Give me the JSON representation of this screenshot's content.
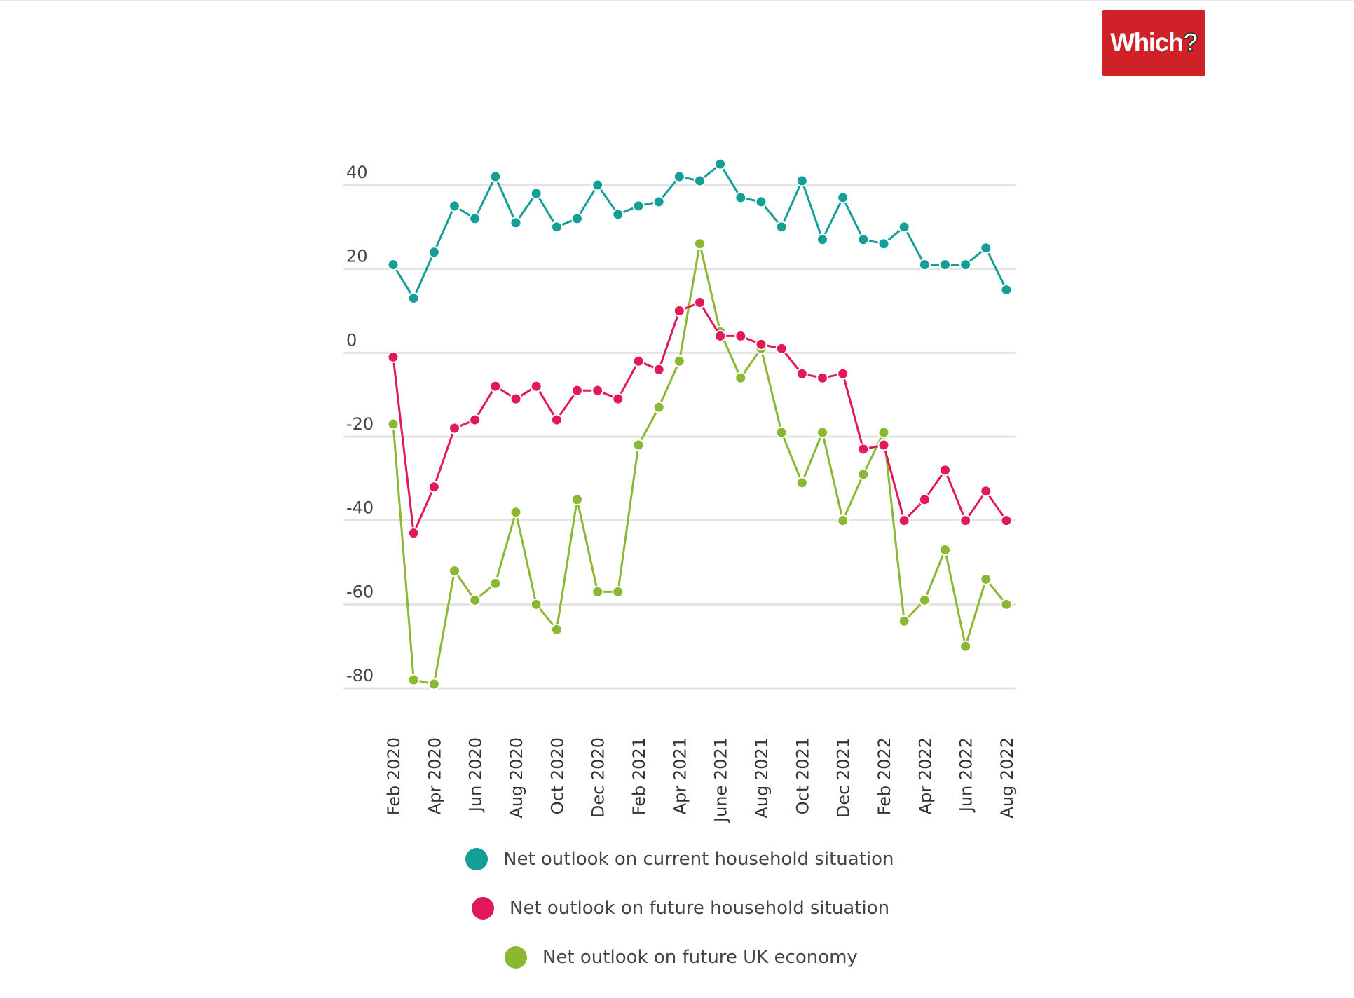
{
  "logo": {
    "text": "Which",
    "mark": "?"
  },
  "chart_data": {
    "type": "line",
    "title": "",
    "xlabel": "",
    "ylabel": "",
    "ylim": [
      -80,
      40
    ],
    "y_ticks": [
      40,
      20,
      0,
      -20,
      -40,
      -60,
      -80
    ],
    "y_tick_labels": [
      "40",
      "20",
      "0",
      "-20",
      "-40",
      "-60",
      "-80"
    ],
    "grid": true,
    "legend_position": "bottom",
    "x": [
      "Feb 2020",
      "Mar 2020",
      "Apr 2020",
      "May 2020",
      "Jun 2020",
      "Jul 2020",
      "Aug 2020",
      "Sep 2020",
      "Oct 2020",
      "Nov 2020",
      "Dec 2020",
      "Jan 2021",
      "Feb 2021",
      "Mar 2021",
      "Apr 2021",
      "May 2021",
      "June 2021",
      "Jul 2021",
      "Aug 2021",
      "Sep 2021",
      "Oct 2021",
      "Nov 2021",
      "Dec 2021",
      "Jan 2022",
      "Feb 2022",
      "Mar 2022",
      "Apr 2022",
      "May 2022",
      "Jun 2022",
      "Jul 2022",
      "Aug 2022"
    ],
    "x_tick_labels": [
      "Feb 2020",
      "Apr 2020",
      "Jun 2020",
      "Aug 2020",
      "Oct 2020",
      "Dec 2020",
      "Feb 2021",
      "Apr 2021",
      "June 2021",
      "Aug 2021",
      "Oct 2021",
      "Dec 2021",
      "Feb 2022",
      "Apr 2022",
      "Jun 2022",
      "Aug 2022"
    ],
    "series": [
      {
        "name": "Net outlook on current household situation",
        "color": "#139e96",
        "values": [
          21,
          13,
          24,
          35,
          32,
          42,
          31,
          38,
          30,
          32,
          40,
          33,
          35,
          36,
          42,
          41,
          45,
          37,
          36,
          30,
          41,
          27,
          37,
          27,
          26,
          30,
          21,
          21,
          21,
          25,
          15
        ]
      },
      {
        "name": "Net outlook on future household situation",
        "color": "#e1185a",
        "values": [
          -1,
          -43,
          -32,
          -18,
          -16,
          -8,
          -11,
          -8,
          -16,
          -9,
          -9,
          -11,
          -2,
          -4,
          10,
          12,
          4,
          4,
          2,
          1,
          -5,
          -6,
          -5,
          -23,
          -22,
          -40,
          -35,
          -28,
          -40,
          -33,
          -40
        ]
      },
      {
        "name": "Net outlook on future UK economy",
        "color": "#8ab832",
        "values": [
          -17,
          -78,
          -79,
          -52,
          -59,
          -55,
          -38,
          -60,
          -66,
          -35,
          -57,
          -57,
          -22,
          -13,
          -2,
          26,
          5,
          -6,
          1,
          -19,
          -31,
          -19,
          -40,
          -29,
          -19,
          -64,
          -59,
          -47,
          -70,
          -54,
          -60
        ]
      }
    ]
  }
}
